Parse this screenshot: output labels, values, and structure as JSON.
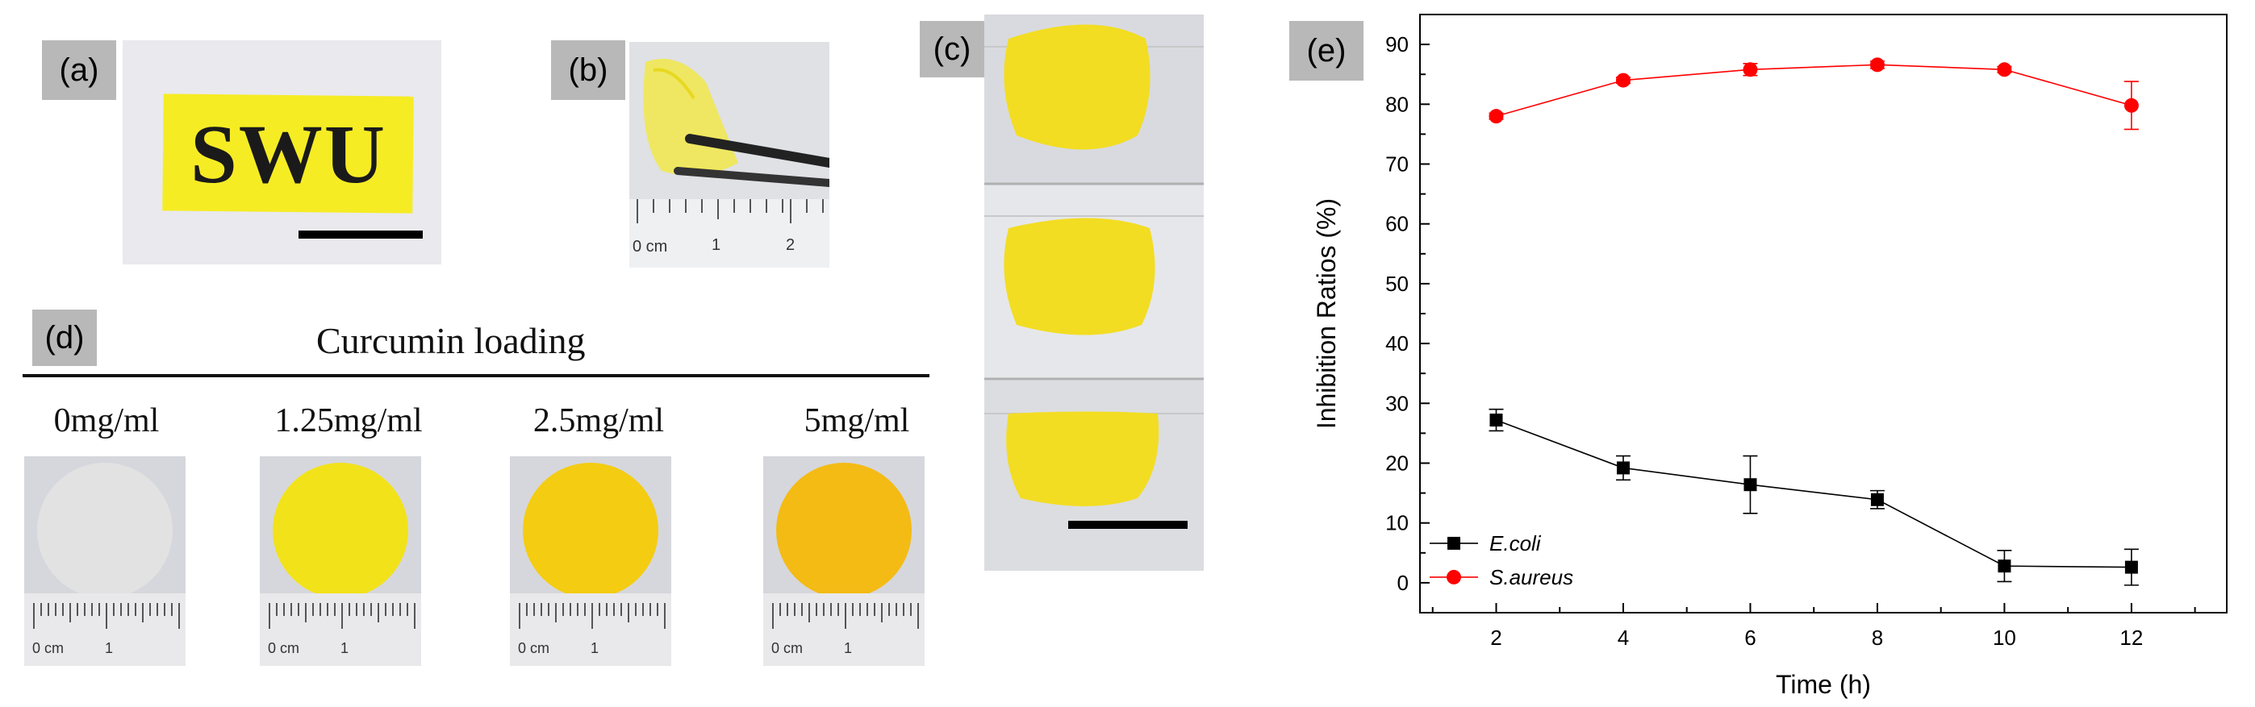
{
  "panels": {
    "a": {
      "label": "(a)",
      "stamp_text": "SWU"
    },
    "b": {
      "label": "(b)",
      "ruler": [
        "0 cm",
        "1",
        "2"
      ]
    },
    "c": {
      "label": "(c)"
    },
    "d": {
      "label": "(d)",
      "title": "Curcumin loading",
      "samples": [
        {
          "conc": "0mg/ml",
          "disc_color": "#e6e6e6"
        },
        {
          "conc": "1.25mg/ml",
          "disc_color": "#f2e21a"
        },
        {
          "conc": "2.5mg/ml",
          "disc_color": "#f4cc12"
        },
        {
          "conc": "5mg/ml",
          "disc_color": "#f3bb14"
        }
      ],
      "ruler_labels": [
        "0 cm",
        "1"
      ]
    },
    "e": {
      "label": "(e)"
    }
  },
  "colors": {
    "e_coli": "#000000",
    "s_aureus": "#ff0000",
    "film_yellow": "#f2e21a"
  },
  "chart_data": {
    "type": "line",
    "xlabel": "Time (h)",
    "ylabel": "Inhibition Ratios (%)",
    "xlim": [
      0.8,
      13.5
    ],
    "ylim": [
      -5,
      95
    ],
    "xticks": [
      2,
      4,
      6,
      8,
      10,
      12
    ],
    "yticks": [
      0,
      10,
      20,
      30,
      40,
      50,
      60,
      70,
      80,
      90
    ],
    "legend_position": "bottom-left",
    "series": [
      {
        "name": "E.coli",
        "marker": "square",
        "color": "#000000",
        "x": [
          2,
          4,
          6,
          8,
          10,
          12
        ],
        "y": [
          27.2,
          19.2,
          16.4,
          13.9,
          2.8,
          2.6
        ],
        "err": [
          1.8,
          2.0,
          4.8,
          1.5,
          2.6,
          3.0
        ]
      },
      {
        "name": "S.aureus",
        "marker": "circle",
        "color": "#ff0000",
        "x": [
          2,
          4,
          6,
          8,
          10,
          12
        ],
        "y": [
          78.0,
          84.0,
          85.8,
          86.6,
          85.8,
          79.8
        ],
        "err": [
          0.5,
          0.5,
          1.0,
          0.6,
          0.5,
          4.0
        ]
      }
    ]
  }
}
